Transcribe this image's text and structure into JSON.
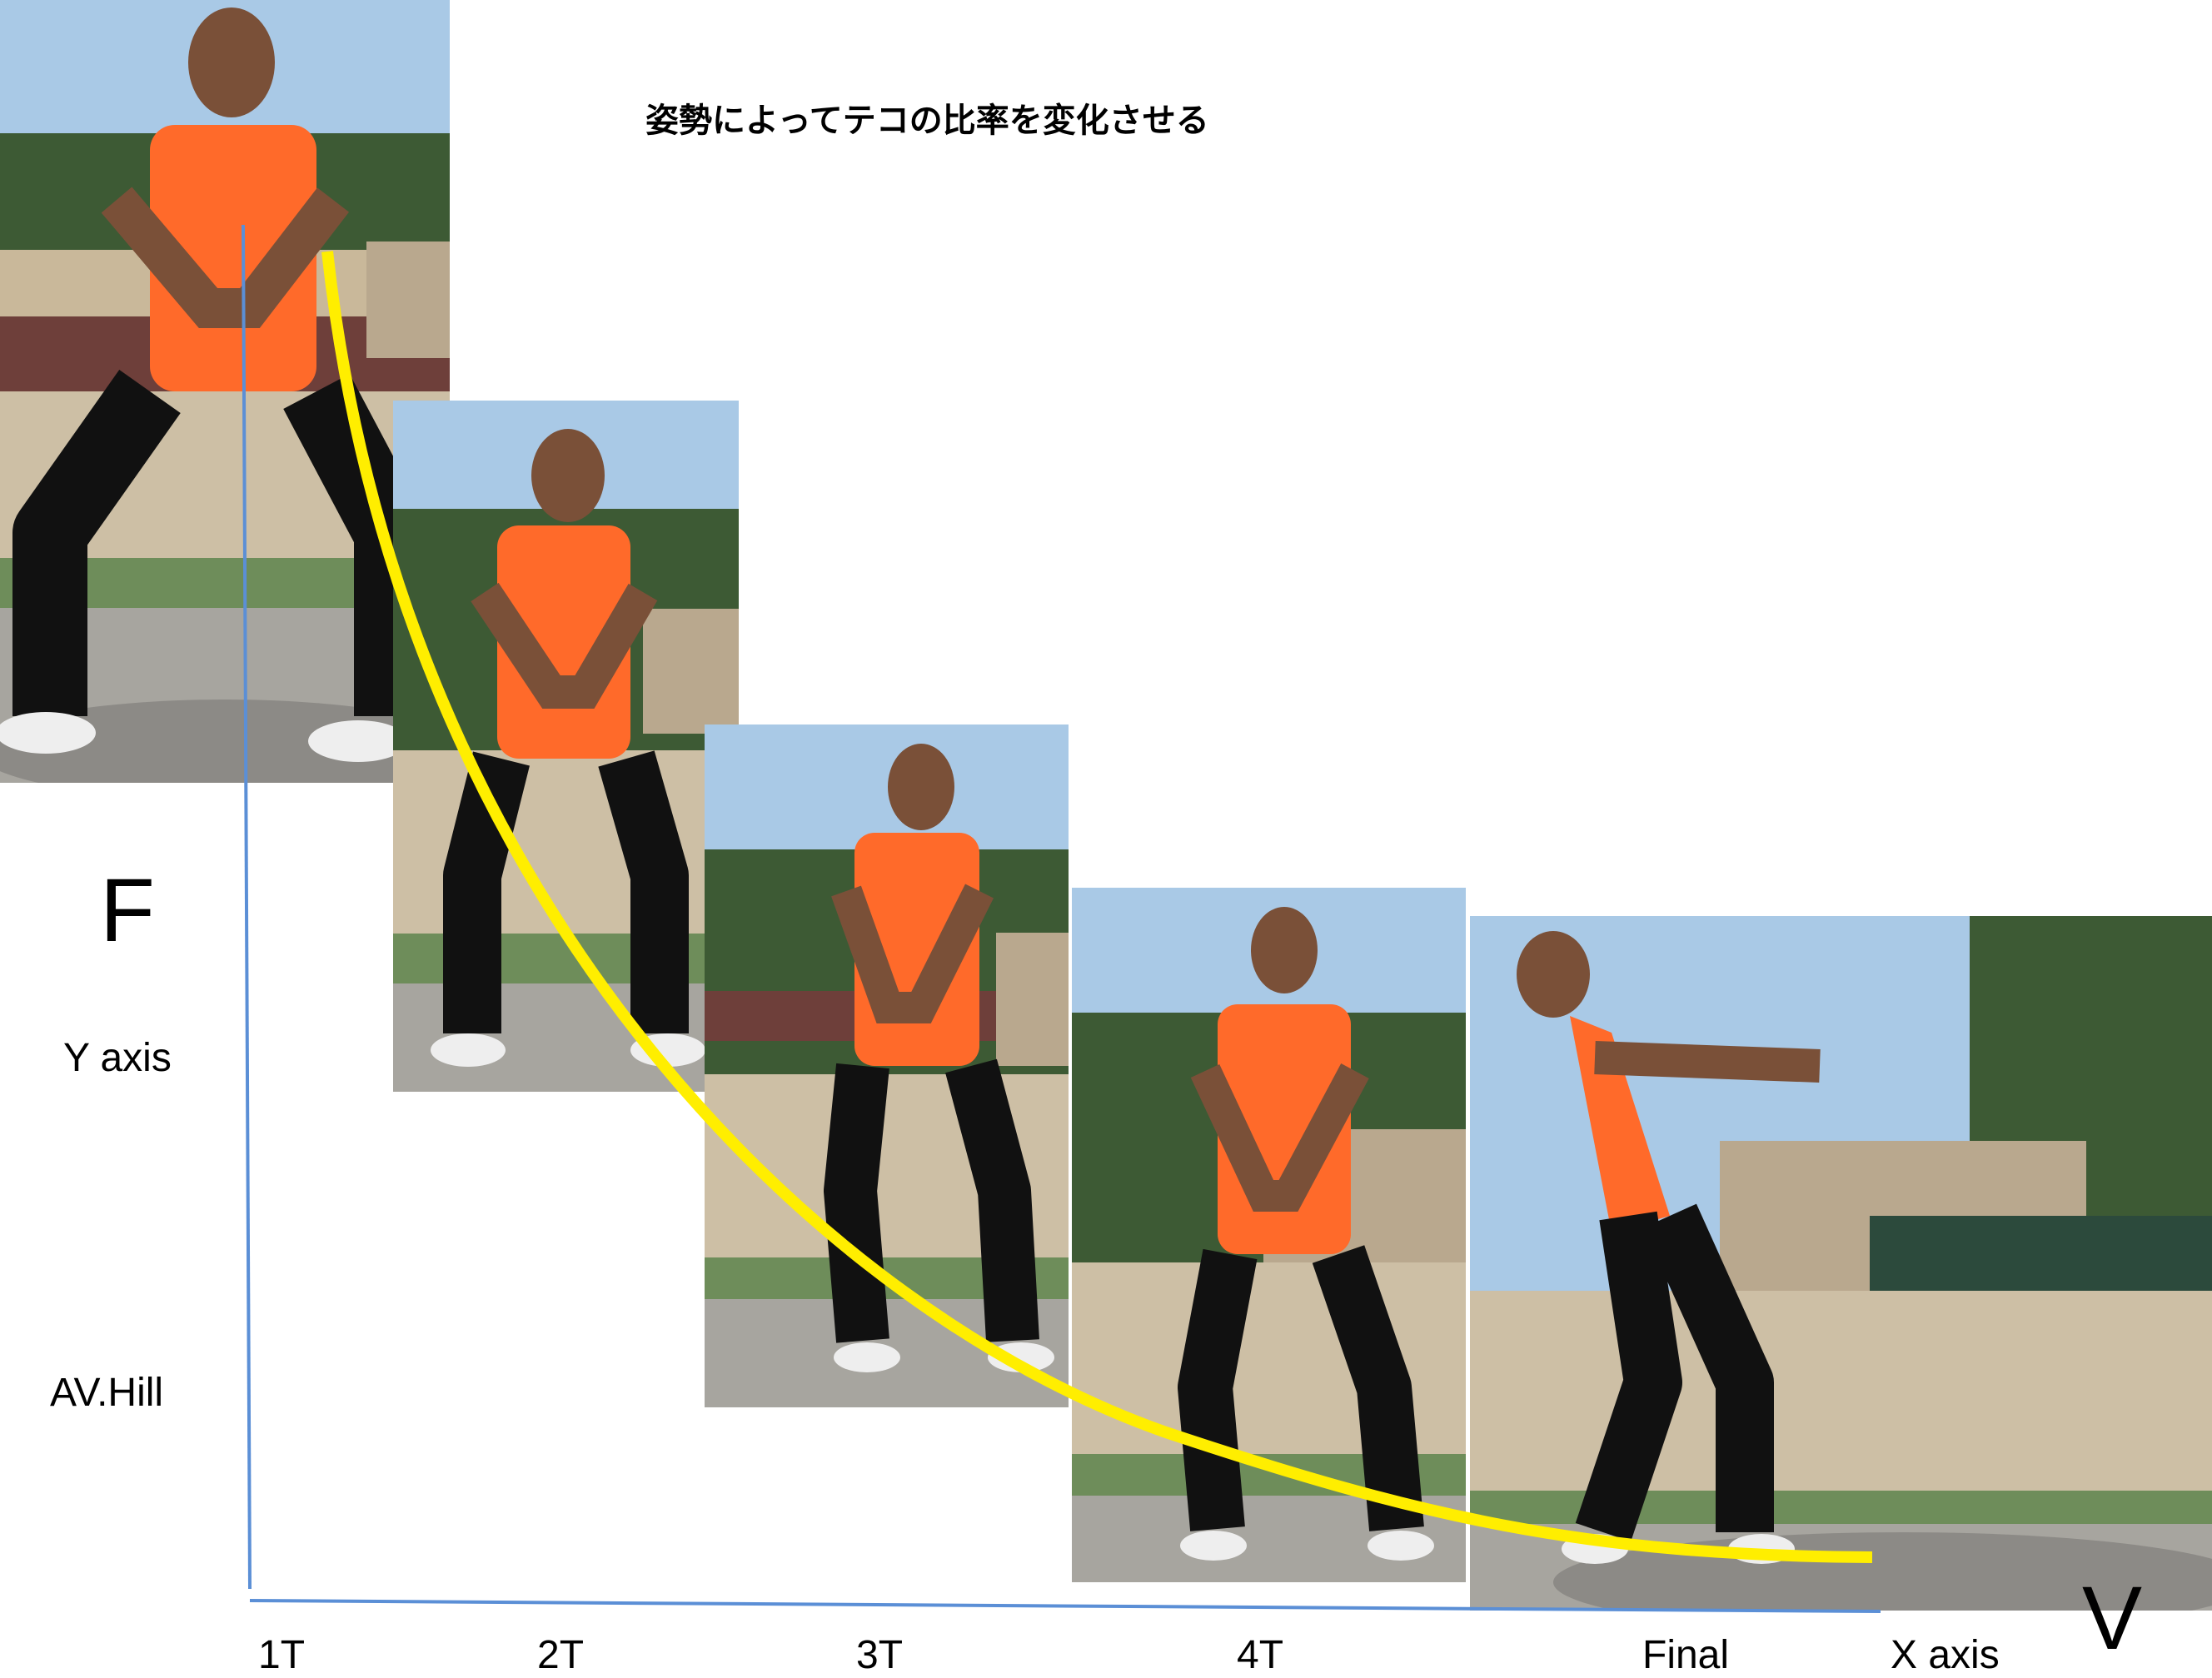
{
  "title": "姿勢によってテコの比率を変化させる",
  "axis": {
    "force_symbol": "F",
    "velocity_symbol": "V",
    "y_label": "Y axis",
    "x_label": "X axis",
    "curve_label": "AV.Hill"
  },
  "stages": [
    "1T",
    "2T",
    "3T",
    "4T",
    "Final"
  ],
  "photos": [
    {
      "name": "athlete-photo-1t",
      "pose": "wide-squat-arms-front"
    },
    {
      "name": "athlete-photo-2t",
      "pose": "squat-arms-down"
    },
    {
      "name": "athlete-photo-3t",
      "pose": "half-squat-arms-down"
    },
    {
      "name": "athlete-photo-4t",
      "pose": "knees-bent-arms-down"
    },
    {
      "name": "athlete-photo-final",
      "pose": "leaning-back-release"
    }
  ],
  "colors": {
    "curve": "#ffee00",
    "axis": "#5b8fd6",
    "shirt": "#ff6a2a",
    "sky": "#a9c9e6",
    "trees": "#3d5a34"
  }
}
